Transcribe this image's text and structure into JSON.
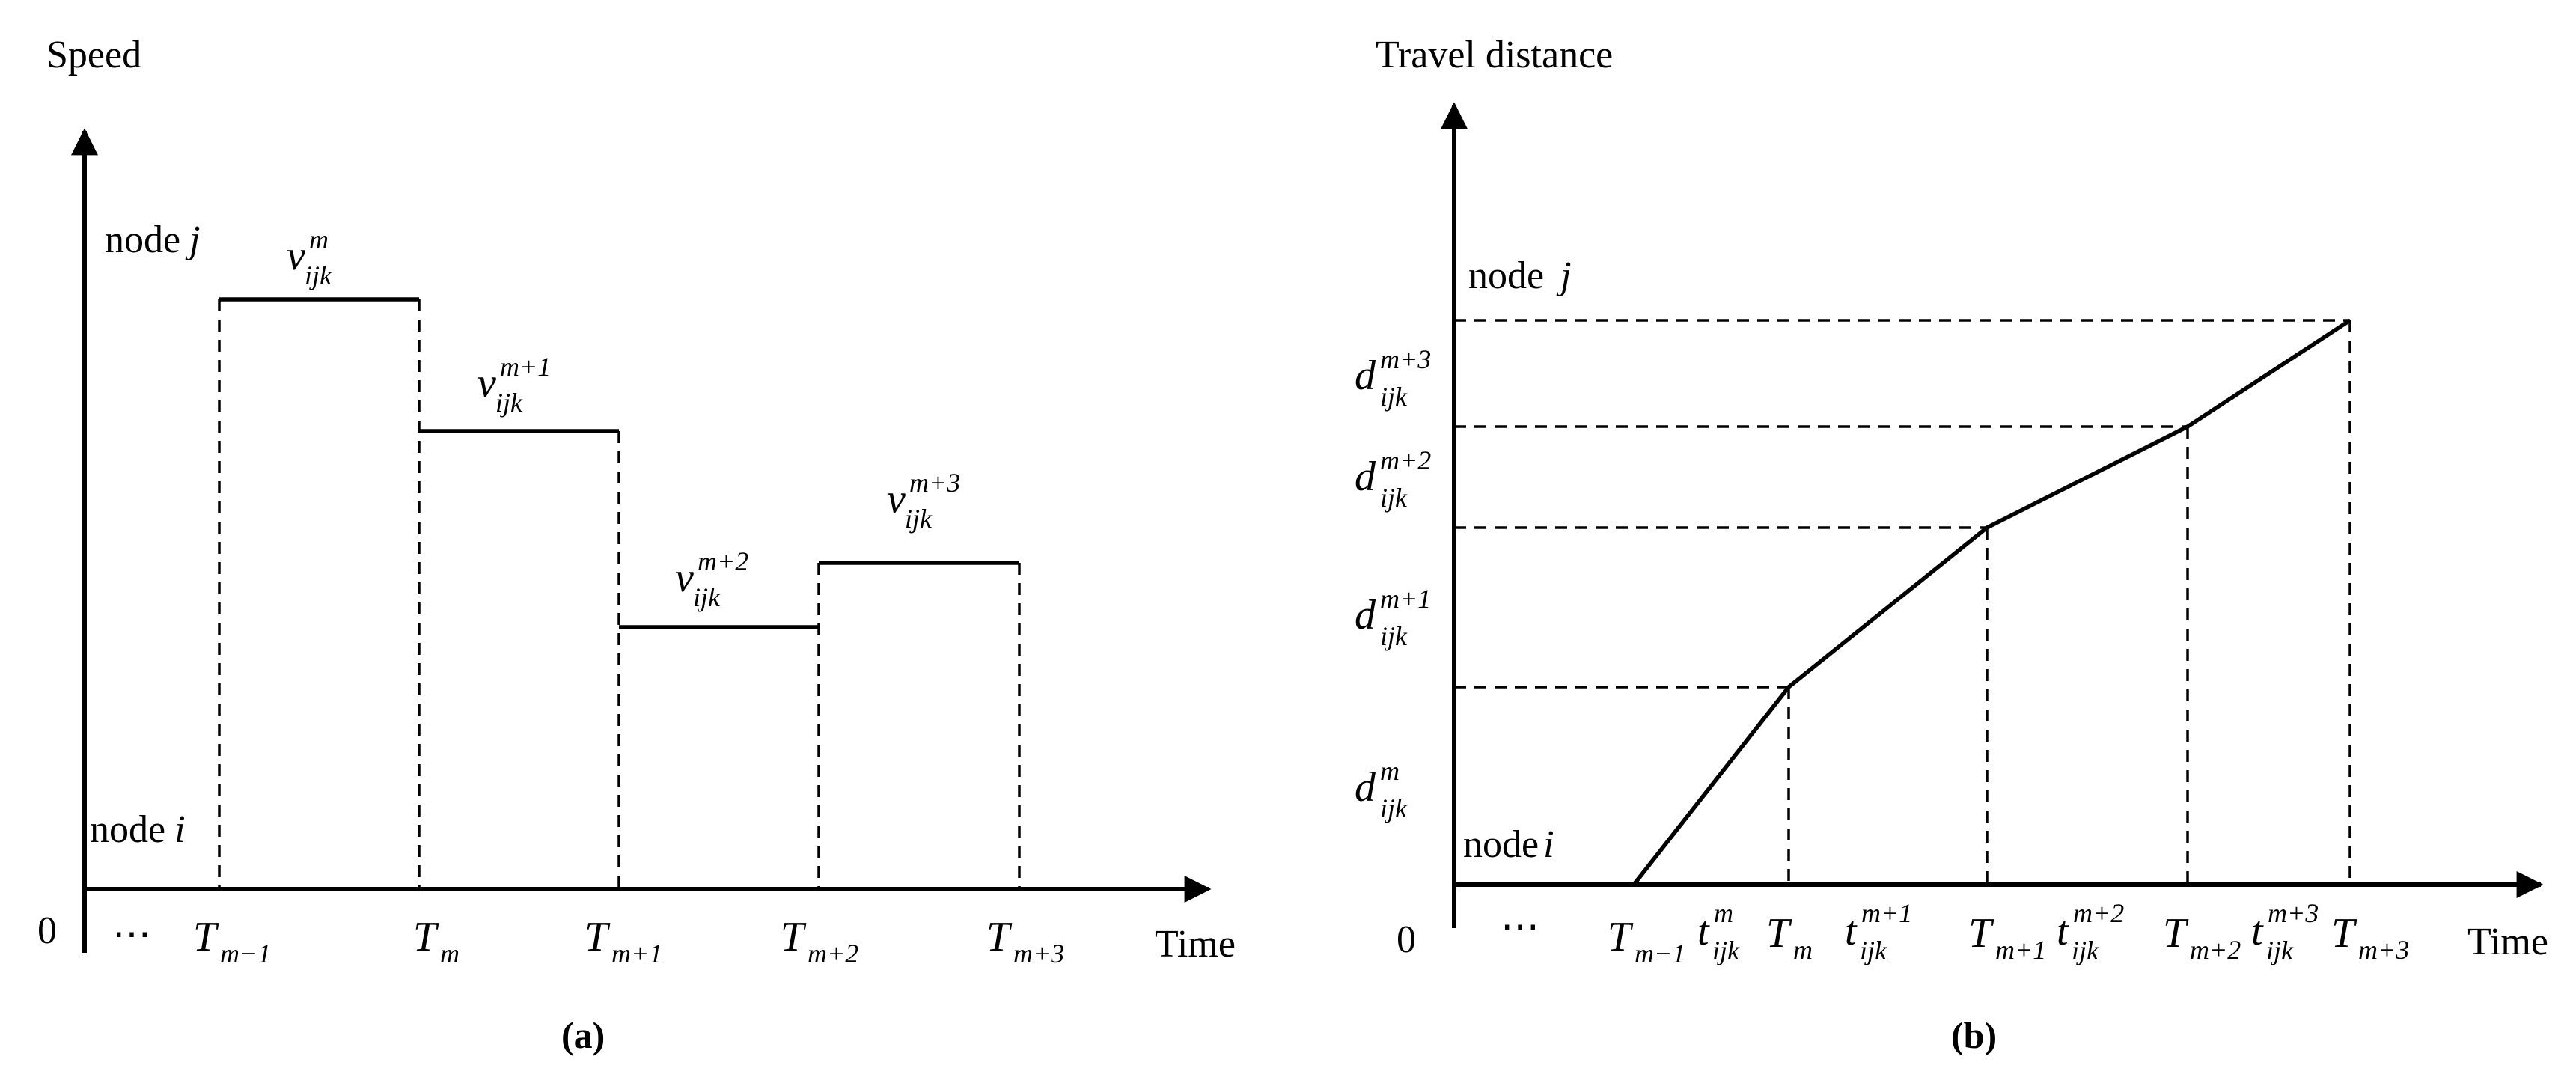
{
  "panel_a": {
    "y_axis_label": "Speed",
    "x_axis_label": "Time",
    "origin_label": "0",
    "ellipsis": "⋯",
    "top_node": {
      "word": "node",
      "var": "j"
    },
    "bottom_node": {
      "word": "node",
      "var": "i"
    },
    "panel_label": "(a)",
    "time_ticks": [
      {
        "base": "T",
        "sub": "m−1"
      },
      {
        "base": "T",
        "sub": "m"
      },
      {
        "base": "T",
        "sub": "m+1"
      },
      {
        "base": "T",
        "sub": "m+2"
      },
      {
        "base": "T",
        "sub": "m+3"
      }
    ],
    "speed_labels": [
      {
        "base": "v",
        "sub": "ijk",
        "sup": "m"
      },
      {
        "base": "v",
        "sub": "ijk",
        "sup": "m+1"
      },
      {
        "base": "v",
        "sub": "ijk",
        "sup": "m+2"
      },
      {
        "base": "v",
        "sub": "ijk",
        "sup": "m+3"
      }
    ]
  },
  "panel_b": {
    "y_axis_label": "Travel distance",
    "x_axis_label": "Time",
    "origin_label": "0",
    "ellipsis": "⋯",
    "top_node": {
      "word": "node",
      "var": "j"
    },
    "bottom_node": {
      "word": "node",
      "var": "i"
    },
    "panel_label": "(b)",
    "time_ticks": [
      {
        "base": "T",
        "sub": "m−1"
      },
      {
        "base": "t",
        "sub": "ijk",
        "sup": "m"
      },
      {
        "base": "T",
        "sub": "m"
      },
      {
        "base": "t",
        "sub": "ijk",
        "sup": "m+1"
      },
      {
        "base": "T",
        "sub": "m+1"
      },
      {
        "base": "t",
        "sub": "ijk",
        "sup": "m+2"
      },
      {
        "base": "T",
        "sub": "m+2"
      },
      {
        "base": "t",
        "sub": "ijk",
        "sup": "m+3"
      },
      {
        "base": "T",
        "sub": "m+3"
      }
    ],
    "distance_labels": [
      {
        "base": "d",
        "sub": "ijk",
        "sup": "m+3"
      },
      {
        "base": "d",
        "sub": "ijk",
        "sup": "m+2"
      },
      {
        "base": "d",
        "sub": "ijk",
        "sup": "m+1"
      },
      {
        "base": "d",
        "sub": "ijk",
        "sup": "m"
      }
    ]
  }
}
